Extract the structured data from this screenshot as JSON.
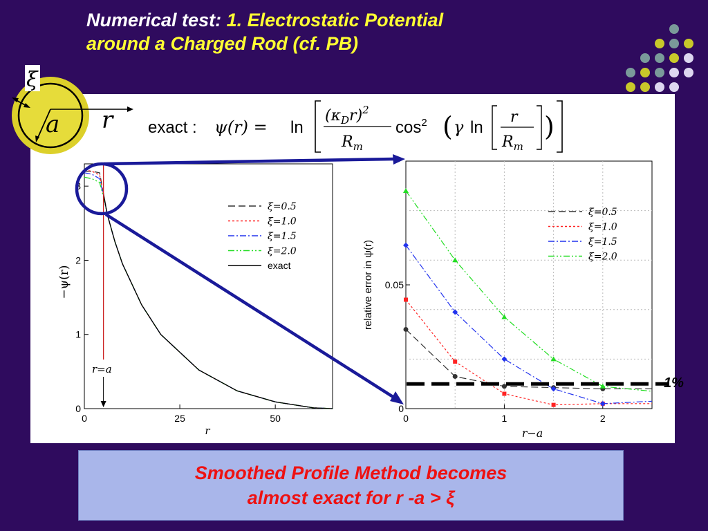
{
  "title": {
    "prefix": "Numerical test: ",
    "line1_highlight": "1. Electrostatic Potential",
    "line2": "around a Charged Rod (cf. PB)"
  },
  "diagram": {
    "xi_symbol": "ξ",
    "a_symbol": "a",
    "r_symbol": "r"
  },
  "formula": {
    "lead": "exact :",
    "text": "exact :ψ(r) = ln[(κ_D r)² / R_m · cos²(γ ln[r / R_m])]"
  },
  "one_percent_label": "1%",
  "caption": {
    "line1": "Smoothed Profile Method becomes",
    "line2": "almost exact for r -a > ξ"
  },
  "colors": {
    "background": "#2f0b5e",
    "title_accent": "#ffff33",
    "xi_0_5": "#333333",
    "xi_1_0": "#ff2222",
    "xi_1_5": "#2233ee",
    "xi_2_0": "#22dd22",
    "exact": "#000000",
    "callout": "#1a1a99",
    "caption_bg": "#a9b6ea",
    "caption_text": "#ee1111"
  },
  "chart_data": [
    {
      "type": "line",
      "xlabel": "r",
      "ylabel": "−ψ(r)",
      "xlim": [
        0,
        65
      ],
      "ylim": [
        0,
        3.3
      ],
      "xticks": [
        0,
        25,
        50
      ],
      "yticks": [
        0,
        1,
        2,
        3
      ],
      "annotation": "r=a",
      "annotation_x": 5,
      "legend_position": "right-center",
      "series": [
        {
          "name": "ξ=0.5",
          "style": "dashed",
          "x": [
            0,
            2,
            4,
            5,
            6,
            8,
            10,
            15,
            20,
            30,
            40,
            50,
            60,
            65
          ],
          "y": [
            3.2,
            3.2,
            3.18,
            2.9,
            2.62,
            2.25,
            1.95,
            1.4,
            1.0,
            0.52,
            0.24,
            0.09,
            0.01,
            0.0
          ]
        },
        {
          "name": "ξ=1.0",
          "style": "dotted",
          "x": [
            0,
            2,
            4,
            5,
            6,
            8,
            10,
            15,
            20,
            30,
            40,
            50,
            60,
            65
          ],
          "y": [
            3.22,
            3.2,
            3.15,
            2.9,
            2.62,
            2.25,
            1.95,
            1.4,
            1.0,
            0.52,
            0.24,
            0.09,
            0.01,
            0.0
          ]
        },
        {
          "name": "ξ=1.5",
          "style": "dashdot",
          "x": [
            0,
            2,
            4,
            5,
            6,
            8,
            10,
            15,
            20,
            30,
            40,
            50,
            60,
            65
          ],
          "y": [
            3.18,
            3.16,
            3.1,
            2.88,
            2.62,
            2.25,
            1.95,
            1.4,
            1.0,
            0.52,
            0.24,
            0.09,
            0.01,
            0.0
          ]
        },
        {
          "name": "ξ=2.0",
          "style": "dashdotdot",
          "x": [
            0,
            2,
            4,
            5,
            6,
            8,
            10,
            15,
            20,
            30,
            40,
            50,
            60,
            65
          ],
          "y": [
            3.12,
            3.1,
            3.05,
            2.86,
            2.62,
            2.25,
            1.95,
            1.4,
            1.0,
            0.52,
            0.24,
            0.09,
            0.01,
            0.0
          ]
        },
        {
          "name": "exact",
          "style": "solid",
          "x": [
            5,
            6,
            8,
            10,
            15,
            20,
            30,
            40,
            50,
            60,
            65
          ],
          "y": [
            2.9,
            2.62,
            2.25,
            1.95,
            1.4,
            1.0,
            0.52,
            0.24,
            0.09,
            0.01,
            0.0
          ]
        }
      ]
    },
    {
      "type": "line",
      "xlabel": "r−a",
      "ylabel": "relative error in ψ(r)",
      "xlim": [
        0,
        2.5
      ],
      "ylim": [
        0,
        0.1
      ],
      "xticks": [
        0,
        1,
        2
      ],
      "yticks": [
        0,
        0.05
      ],
      "ytick_labels": [
        "0",
        "0.05"
      ],
      "legend_position": "top-right",
      "reference_line": {
        "y": 0.01,
        "label": "1%"
      },
      "series": [
        {
          "name": "ξ=0.5",
          "style": "dashed",
          "marker": "circle",
          "x": [
            0,
            0.5,
            1.0,
            1.5,
            2.0,
            2.5
          ],
          "y": [
            0.032,
            0.013,
            0.009,
            0.0085,
            0.008,
            0.008
          ]
        },
        {
          "name": "ξ=1.0",
          "style": "dotted",
          "marker": "square",
          "x": [
            0,
            0.5,
            1.0,
            1.5,
            2.0,
            2.5
          ],
          "y": [
            0.044,
            0.019,
            0.006,
            0.0015,
            0.002,
            0.002
          ]
        },
        {
          "name": "ξ=1.5",
          "style": "dashdot",
          "marker": "diamond",
          "x": [
            0,
            0.5,
            1.0,
            1.5,
            2.0,
            2.5
          ],
          "y": [
            0.066,
            0.039,
            0.02,
            0.008,
            0.002,
            0.003
          ]
        },
        {
          "name": "ξ=2.0",
          "style": "dashdotdot",
          "marker": "triangle",
          "x": [
            0,
            0.5,
            1.0,
            1.5,
            2.0,
            2.5
          ],
          "y": [
            0.088,
            0.06,
            0.037,
            0.02,
            0.009,
            0.007
          ]
        }
      ]
    }
  ]
}
